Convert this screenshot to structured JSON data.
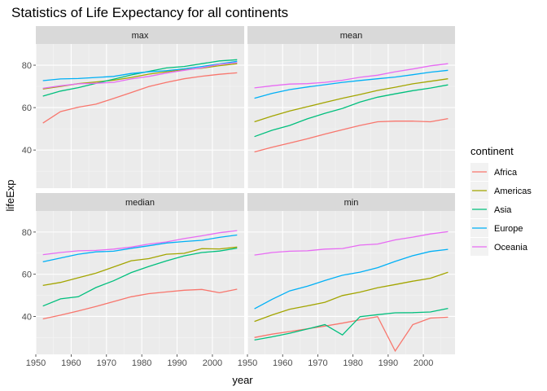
{
  "chart_data": {
    "type": "line",
    "title": "Statistics of Life Expectancy for all continents",
    "xlabel": "year",
    "ylabel": "lifeExp",
    "xlim": [
      1950,
      2009
    ],
    "ylim": [
      22,
      90
    ],
    "x_ticks": [
      1950,
      1960,
      1970,
      1980,
      1990,
      2000
    ],
    "y_ticks": [
      40,
      60,
      80
    ],
    "grid": true,
    "legend_title": "continent",
    "legend_position": "right",
    "x": [
      1952,
      1957,
      1962,
      1967,
      1972,
      1977,
      1982,
      1987,
      1992,
      1997,
      2002,
      2007
    ],
    "series_names": [
      "Africa",
      "Americas",
      "Asia",
      "Europe",
      "Oceania"
    ],
    "colors": {
      "Africa": "#F8766D",
      "Americas": "#A3A500",
      "Asia": "#00BF7D",
      "Europe": "#00B0F6",
      "Oceania": "#E76BF3"
    },
    "panels": [
      {
        "label": "max",
        "series": [
          {
            "name": "Africa",
            "values": [
              52.7,
              58.1,
              60.2,
              61.6,
              64.3,
              67.1,
              69.9,
              71.9,
              73.6,
              74.8,
              75.7,
              76.4
            ]
          },
          {
            "name": "Americas",
            "values": [
              68.8,
              70.0,
              71.3,
              72.1,
              72.9,
              74.2,
              75.8,
              76.9,
              77.9,
              78.6,
              79.8,
              80.7
            ]
          },
          {
            "name": "Asia",
            "values": [
              65.4,
              67.8,
              69.4,
              71.4,
              73.4,
              75.4,
              77.1,
              78.7,
              79.4,
              80.7,
              82.0,
              82.6
            ]
          },
          {
            "name": "Europe",
            "values": [
              72.7,
              73.5,
              73.7,
              74.2,
              74.7,
              76.1,
              76.9,
              77.4,
              78.3,
              79.4,
              80.6,
              81.8
            ]
          },
          {
            "name": "Oceania",
            "values": [
              69.1,
              70.3,
              71.2,
              71.5,
              71.9,
              73.5,
              74.7,
              76.3,
              77.6,
              78.8,
              80.4,
              81.2
            ]
          }
        ]
      },
      {
        "label": "mean",
        "series": [
          {
            "name": "Africa",
            "values": [
              39.1,
              41.3,
              43.3,
              45.3,
              47.5,
              49.6,
              51.6,
              53.3,
              53.6,
              53.6,
              53.3,
              54.8
            ]
          },
          {
            "name": "Americas",
            "values": [
              53.3,
              56.0,
              58.4,
              60.4,
              62.4,
              64.4,
              66.2,
              68.1,
              69.6,
              71.2,
              72.4,
              73.6
            ]
          },
          {
            "name": "Asia",
            "values": [
              46.3,
              49.3,
              51.6,
              54.7,
              57.3,
              59.6,
              62.6,
              64.9,
              66.5,
              68.0,
              69.2,
              70.7
            ]
          },
          {
            "name": "Europe",
            "values": [
              64.4,
              66.7,
              68.5,
              69.7,
              70.8,
              71.9,
              72.8,
              73.6,
              74.4,
              75.5,
              76.7,
              77.6
            ]
          },
          {
            "name": "Oceania",
            "values": [
              69.3,
              70.3,
              71.1,
              71.3,
              71.9,
              72.9,
              74.3,
              75.3,
              76.9,
              78.2,
              79.7,
              80.7
            ]
          }
        ]
      },
      {
        "label": "median",
        "series": [
          {
            "name": "Africa",
            "values": [
              38.8,
              40.6,
              42.6,
              44.7,
              47.0,
              49.3,
              50.8,
              51.6,
              52.4,
              52.8,
              51.2,
              52.9
            ]
          },
          {
            "name": "Americas",
            "values": [
              54.7,
              56.1,
              58.3,
              60.5,
              63.4,
              66.4,
              67.4,
              69.5,
              69.9,
              72.1,
              72.0,
              72.9
            ]
          },
          {
            "name": "Asia",
            "values": [
              44.9,
              48.3,
              49.3,
              53.7,
              56.9,
              60.8,
              63.7,
              66.3,
              68.7,
              70.3,
              71.0,
              72.4
            ]
          },
          {
            "name": "Europe",
            "values": [
              65.9,
              67.7,
              69.5,
              70.6,
              70.9,
              72.3,
              73.5,
              74.8,
              75.5,
              76.1,
              77.5,
              78.6
            ]
          },
          {
            "name": "Oceania",
            "values": [
              69.3,
              70.3,
              71.1,
              71.3,
              71.9,
              72.9,
              74.3,
              75.3,
              76.9,
              78.2,
              79.7,
              80.7
            ]
          }
        ]
      },
      {
        "label": "min",
        "series": [
          {
            "name": "Africa",
            "values": [
              30.0,
              31.6,
              32.8,
              34.1,
              35.4,
              36.8,
              38.4,
              39.9,
              23.6,
              36.1,
              39.2,
              39.6
            ]
          },
          {
            "name": "Americas",
            "values": [
              37.6,
              40.7,
              43.4,
              45.0,
              46.7,
              49.9,
              51.5,
              53.6,
              55.1,
              56.7,
              58.1,
              60.9
            ]
          },
          {
            "name": "Asia",
            "values": [
              28.8,
              30.3,
              32.0,
              34.0,
              36.1,
              31.2,
              39.9,
              40.8,
              41.7,
              41.8,
              42.1,
              43.8
            ]
          },
          {
            "name": "Europe",
            "values": [
              43.6,
              48.1,
              52.1,
              54.3,
              57.0,
              59.5,
              61.0,
              63.1,
              66.1,
              68.8,
              70.8,
              71.8
            ]
          },
          {
            "name": "Oceania",
            "values": [
              69.1,
              70.3,
              70.9,
              71.1,
              71.9,
              72.2,
              73.8,
              74.3,
              76.3,
              77.6,
              79.1,
              80.2
            ]
          }
        ]
      }
    ]
  }
}
